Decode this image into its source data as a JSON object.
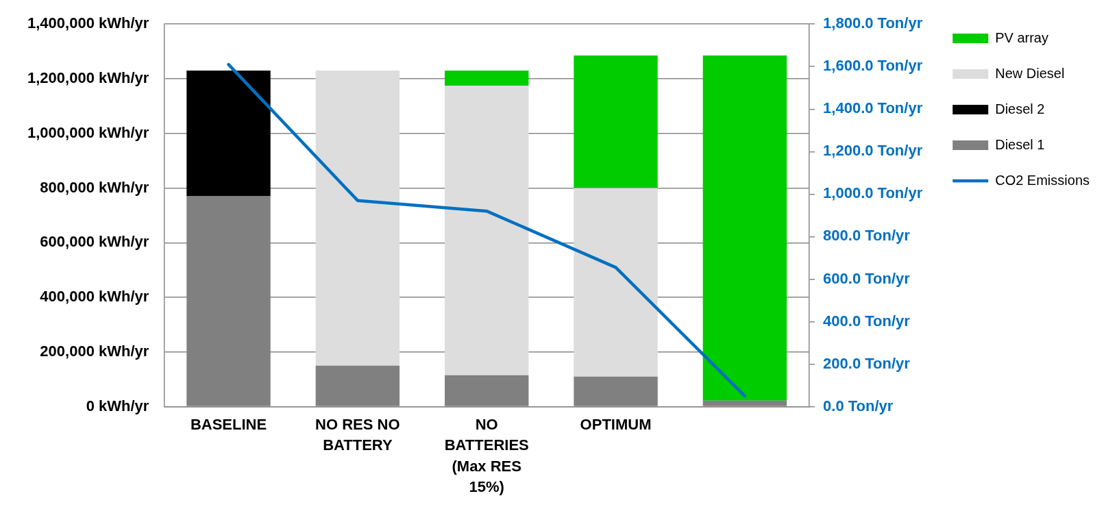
{
  "chart_data": {
    "type": "bar",
    "stacked": true,
    "categories": [
      "BASELINE",
      "NO RES NO BATTERY",
      "NO BATTERIES (Max RES 15%)",
      "OPTIMUM",
      null
    ],
    "series": [
      {
        "name": "Diesel 1",
        "color": "#808080",
        "values": [
          770000,
          150000,
          115000,
          110000,
          22000
        ]
      },
      {
        "name": "Diesel 2",
        "color": "#000000",
        "values": [
          460000,
          null,
          null,
          null,
          null
        ]
      },
      {
        "name": "New Diesel",
        "color": "#dddddd",
        "values": [
          null,
          1080000,
          1060000,
          690000,
          null
        ]
      },
      {
        "name": "PV array",
        "color": "#00cc00",
        "values": [
          null,
          null,
          55000,
          485000,
          1263000
        ]
      },
      {
        "name": "CO2 Emissions",
        "type": "line",
        "axis": "y2",
        "color": "#0070c0",
        "values": [
          1610,
          970,
          920,
          655,
          50
        ]
      }
    ],
    "ylim": [
      0,
      1400000
    ],
    "yticks": [
      {
        "value": 0,
        "label": "0 kWh/yr"
      },
      {
        "value": 200000,
        "label": "200,000 kWh/yr"
      },
      {
        "value": 400000,
        "label": "400,000 kWh/yr"
      },
      {
        "value": 600000,
        "label": "600,000 kWh/yr"
      },
      {
        "value": 800000,
        "label": "800,000 kWh/yr"
      },
      {
        "value": 1000000,
        "label": "1,000,000 kWh/yr"
      },
      {
        "value": 1200000,
        "label": "1,200,000 kWh/yr"
      },
      {
        "value": 1400000,
        "label": "1,400,000 kWh/yr"
      }
    ],
    "y2lim": [
      0,
      1800
    ],
    "y2ticks": [
      {
        "value": 0,
        "label": "0.0 Ton/yr"
      },
      {
        "value": 200,
        "label": "200.0 Ton/yr"
      },
      {
        "value": 400,
        "label": "400.0 Ton/yr"
      },
      {
        "value": 600,
        "label": "600.0 Ton/yr"
      },
      {
        "value": 800,
        "label": "800.0 Ton/yr"
      },
      {
        "value": 1000,
        "label": "1,000.0 Ton/yr"
      },
      {
        "value": 1200,
        "label": "1,200.0 Ton/yr"
      },
      {
        "value": 1400,
        "label": "1,400.0 Ton/yr"
      },
      {
        "value": 1600,
        "label": "1,600.0 Ton/yr"
      },
      {
        "value": 1800,
        "label": "1,800.0 Ton/yr"
      }
    ],
    "grid": "y",
    "legend": "right",
    "marker": "none",
    "line_style": "solid"
  }
}
